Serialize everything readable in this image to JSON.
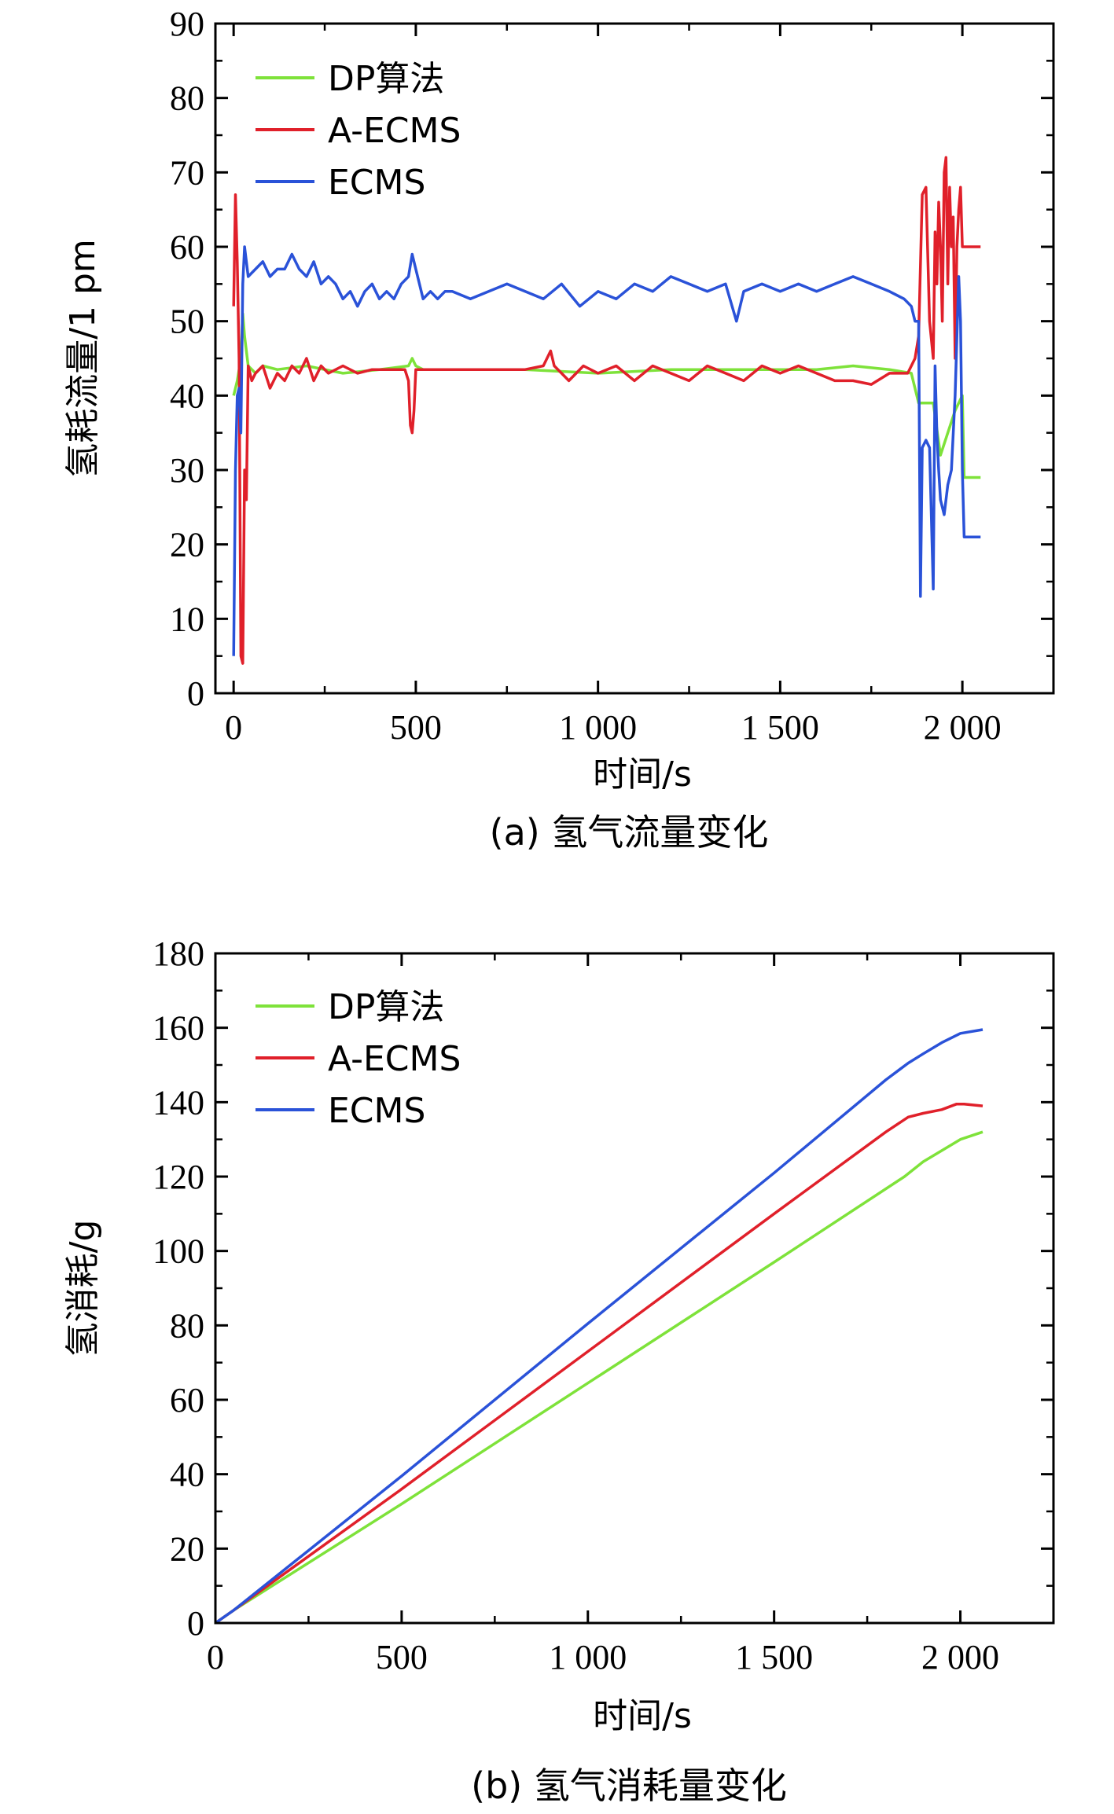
{
  "colors": {
    "DP": "#7ee23a",
    "A-ECMS": "#e0202a",
    "ECMS": "#2a52d8"
  },
  "chart_data": [
    {
      "type": "line",
      "caption": "(a)  氢气流量变化",
      "xlabel": "时间/s",
      "ylabel": "氢耗流量/1 pm",
      "xlim": [
        -50,
        2250
      ],
      "ylim": [
        0,
        90
      ],
      "xticks": [
        0,
        500,
        1000,
        1500,
        2000
      ],
      "xtick_labels": [
        "0",
        "500",
        "1 000",
        "1 500",
        "2 000"
      ],
      "yticks": [
        0,
        10,
        20,
        30,
        40,
        50,
        60,
        70,
        80,
        90
      ],
      "ytick_labels": [
        "0",
        "10",
        "20",
        "30",
        "40",
        "50",
        "60",
        "70",
        "80",
        "90"
      ],
      "legend": [
        "DP算法",
        "A-ECMS",
        "ECMS"
      ],
      "legend_position": "top-left",
      "series": [
        {
          "name": "DP算法",
          "key": "DP",
          "x": [
            0,
            10,
            20,
            25,
            30,
            40,
            60,
            80,
            120,
            200,
            300,
            400,
            480,
            490,
            500,
            520,
            600,
            800,
            1000,
            1200,
            1400,
            1600,
            1700,
            1800,
            1860,
            1880,
            1900,
            1920,
            1940,
            1960,
            1980,
            2000,
            2005,
            2050
          ],
          "y": [
            40,
            42,
            45,
            51,
            48,
            44,
            43,
            44,
            43.5,
            44,
            43,
            43.5,
            44,
            45,
            44,
            43.5,
            43.5,
            43.5,
            43,
            43.5,
            43.5,
            43.5,
            44,
            43.5,
            43,
            39,
            39,
            39,
            32,
            35,
            38,
            40,
            29,
            29
          ]
        },
        {
          "name": "A-ECMS",
          "key": "A-ECMS",
          "x": [
            0,
            5,
            10,
            15,
            20,
            25,
            30,
            35,
            40,
            50,
            60,
            80,
            100,
            120,
            140,
            160,
            180,
            200,
            220,
            240,
            260,
            300,
            340,
            380,
            420,
            470,
            480,
            485,
            490,
            495,
            500,
            520,
            600,
            700,
            800,
            850,
            870,
            880,
            900,
            920,
            960,
            1000,
            1050,
            1100,
            1150,
            1200,
            1250,
            1300,
            1350,
            1400,
            1450,
            1500,
            1550,
            1600,
            1650,
            1700,
            1750,
            1800,
            1850,
            1870,
            1880,
            1890,
            1900,
            1910,
            1920,
            1925,
            1930,
            1935,
            1940,
            1945,
            1950,
            1955,
            1960,
            1965,
            1970,
            1975,
            1980,
            1985,
            1990,
            1995,
            2000,
            2005,
            2050
          ],
          "y": [
            52,
            67,
            58,
            45,
            5,
            4,
            30,
            26,
            44,
            42,
            43,
            44,
            41,
            43,
            42,
            44,
            43,
            45,
            42,
            44,
            43,
            44,
            43,
            43.5,
            43.5,
            43.5,
            42,
            36,
            35,
            38,
            43.5,
            43.5,
            43.5,
            43.5,
            43.5,
            44,
            46,
            44,
            43,
            42,
            44,
            43,
            44,
            42,
            44,
            43,
            42,
            44,
            43,
            42,
            44,
            43,
            44,
            43,
            42,
            42,
            41.5,
            43,
            43,
            45,
            48,
            67,
            68,
            50,
            45,
            62,
            55,
            66,
            60,
            50,
            70,
            72,
            55,
            68,
            60,
            64,
            45,
            60,
            65,
            68,
            60,
            60,
            60
          ]
        },
        {
          "name": "ECMS",
          "key": "ECMS",
          "x": [
            0,
            5,
            10,
            15,
            20,
            25,
            30,
            40,
            60,
            80,
            100,
            120,
            140,
            160,
            180,
            200,
            220,
            240,
            260,
            280,
            300,
            320,
            340,
            360,
            380,
            400,
            420,
            440,
            460,
            480,
            490,
            500,
            520,
            540,
            560,
            580,
            600,
            650,
            700,
            750,
            800,
            850,
            900,
            950,
            1000,
            1050,
            1100,
            1150,
            1200,
            1250,
            1300,
            1350,
            1380,
            1400,
            1450,
            1500,
            1550,
            1600,
            1650,
            1700,
            1750,
            1800,
            1840,
            1860,
            1870,
            1880,
            1885,
            1890,
            1900,
            1910,
            1920,
            1925,
            1930,
            1935,
            1940,
            1950,
            1960,
            1970,
            1980,
            1990,
            1995,
            2000,
            2005,
            2010,
            2050
          ],
          "y": [
            5,
            30,
            40,
            41,
            35,
            55,
            60,
            56,
            57,
            58,
            56,
            57,
            57,
            59,
            57,
            56,
            58,
            55,
            56,
            55,
            53,
            54,
            52,
            54,
            55,
            53,
            54,
            53,
            55,
            56,
            59,
            57,
            53,
            54,
            53,
            54,
            54,
            53,
            54,
            55,
            54,
            53,
            55,
            52,
            54,
            53,
            55,
            54,
            56,
            55,
            54,
            55,
            50,
            54,
            55,
            54,
            55,
            54,
            55,
            56,
            55,
            54,
            53,
            52,
            50,
            50,
            13,
            33,
            34,
            33,
            14,
            44,
            35,
            30,
            26,
            24,
            28,
            30,
            40,
            56,
            50,
            30,
            21,
            21,
            21
          ]
        }
      ]
    },
    {
      "type": "line",
      "caption": "(b) 氢气消耗量变化",
      "xlabel": "时间/s",
      "ylabel": "氢消耗/g",
      "xlim": [
        0,
        2250
      ],
      "ylim": [
        0,
        180
      ],
      "xticks": [
        0,
        500,
        1000,
        1500,
        2000
      ],
      "xtick_labels": [
        "0",
        "500",
        "1 000",
        "1 500",
        "2 000"
      ],
      "yticks": [
        0,
        20,
        40,
        60,
        80,
        100,
        120,
        140,
        160,
        180
      ],
      "ytick_labels": [
        "0",
        "20",
        "40",
        "60",
        "80",
        "100",
        "120",
        "140",
        "160",
        "180"
      ],
      "legend": [
        "DP算法",
        "A-ECMS",
        "ECMS"
      ],
      "legend_position": "top-left",
      "series": [
        {
          "name": "DP算法",
          "key": "DP",
          "x": [
            0,
            50,
            500,
            1000,
            1500,
            1850,
            1900,
            2000,
            2060
          ],
          "y": [
            0,
            3.5,
            32,
            64.5,
            97,
            120,
            124,
            130,
            132
          ]
        },
        {
          "name": "A-ECMS",
          "key": "A-ECMS",
          "x": [
            0,
            50,
            500,
            1000,
            1500,
            1800,
            1860,
            1900,
            1950,
            1990,
            2010,
            2060
          ],
          "y": [
            0,
            3.5,
            36,
            73,
            110,
            132,
            136,
            137,
            138,
            139.5,
            139.5,
            139
          ]
        },
        {
          "name": "ECMS",
          "key": "ECMS",
          "x": [
            0,
            50,
            500,
            1000,
            1500,
            1800,
            1860,
            1900,
            1950,
            2000,
            2060
          ],
          "y": [
            0,
            3.5,
            39.5,
            80.5,
            121,
            146,
            150.5,
            153,
            156,
            158.5,
            159.5
          ]
        }
      ]
    }
  ]
}
